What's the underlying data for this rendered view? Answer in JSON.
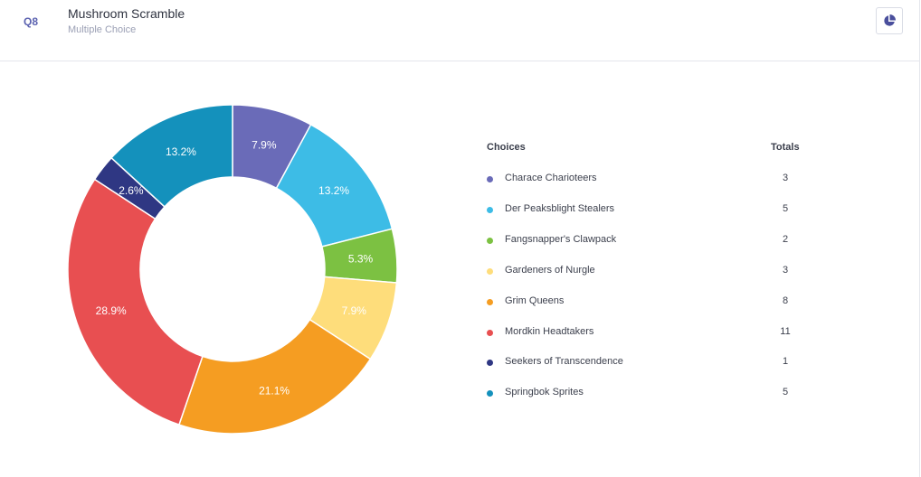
{
  "question": {
    "number": "Q8",
    "title": "Mushroom Scramble",
    "type": "Multiple Choice"
  },
  "toolbar": {
    "chart_toggle_icon": "pie-chart-icon"
  },
  "table": {
    "header_choices": "Choices",
    "header_totals": "Totals"
  },
  "chart_data": {
    "type": "pie",
    "variant": "donut",
    "categories": [
      "Charace Charioteers",
      "Der Peaksblight Stealers",
      "Fangsnapper's Clawpack",
      "Gardeners of Nurgle",
      "Grim Queens",
      "Mordkin Headtakers",
      "Seekers of Transcendence",
      "Springbok Sprites"
    ],
    "values": [
      3,
      5,
      2,
      3,
      8,
      11,
      1,
      5
    ],
    "percent_labels": [
      "7.9%",
      "13.2%",
      "5.3%",
      "7.9%",
      "21.1%",
      "28.9%",
      "2.6%",
      "13.2%"
    ],
    "colors": [
      "#6a6bb8",
      "#3dbce6",
      "#7cc142",
      "#fedd7b",
      "#f59d22",
      "#e84f51",
      "#2f3783",
      "#1491bc"
    ],
    "legend": "right"
  }
}
